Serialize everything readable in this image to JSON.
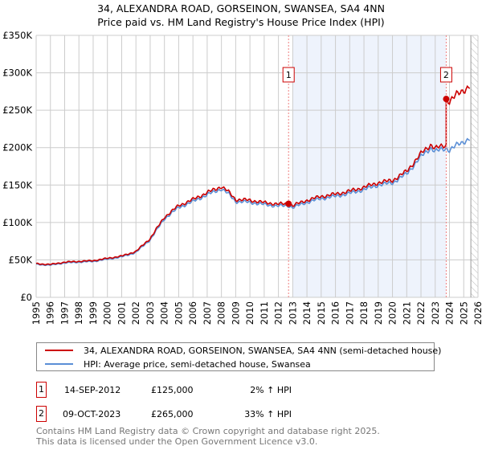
{
  "chart_data": {
    "type": "line",
    "title": "34, ALEXANDRA ROAD, GORSEINON, SWANSEA, SA4 4NN",
    "subtitle": "Price paid vs. HM Land Registry's House Price Index (HPI)",
    "xlim": [
      1995,
      2026
    ],
    "ylim": [
      0,
      350000
    ],
    "x_ticks": [
      "1995",
      "1996",
      "1997",
      "1998",
      "1999",
      "2000",
      "2001",
      "2002",
      "2003",
      "2004",
      "2005",
      "2006",
      "2007",
      "2008",
      "2009",
      "2010",
      "2011",
      "2012",
      "2013",
      "2014",
      "2015",
      "2016",
      "2017",
      "2018",
      "2019",
      "2020",
      "2021",
      "2022",
      "2023",
      "2024",
      "2025",
      "2026"
    ],
    "y_ticks": [
      {
        "v": 0,
        "label": "£0"
      },
      {
        "v": 50000,
        "label": "£50K"
      },
      {
        "v": 100000,
        "label": "£100K"
      },
      {
        "v": 150000,
        "label": "£150K"
      },
      {
        "v": 200000,
        "label": "£200K"
      },
      {
        "v": 250000,
        "label": "£250K"
      },
      {
        "v": 300000,
        "label": "£300K"
      },
      {
        "v": 350000,
        "label": "£350K"
      }
    ],
    "grid": true,
    "series": [
      {
        "name": "34, ALEXANDRA ROAD, GORSEINON, SWANSEA, SA4 4NN (semi-detached house)",
        "color": "#cc0000"
      },
      {
        "name": "HPI: Average price, semi-detached house, Swansea",
        "color": "#5b8fd6",
        "x": [
          1995,
          1996,
          1997,
          1998,
          1999,
          2000,
          2001,
          2002,
          2003,
          2004,
          2005,
          2006,
          2007,
          2008,
          2008.5,
          2009,
          2010,
          2011,
          2012,
          2012.7,
          2013,
          2014,
          2015,
          2016,
          2017,
          2018,
          2019,
          2020,
          2021,
          2022,
          2022.7,
          2023,
          2023.77,
          2024,
          2024.5,
          2025,
          2025.4
        ],
        "values": [
          44000,
          43000,
          46000,
          47000,
          48000,
          51000,
          54000,
          60000,
          77000,
          105000,
          120000,
          128000,
          137000,
          145000,
          138000,
          128000,
          127000,
          124000,
          122000,
          122500,
          120000,
          127000,
          132000,
          135000,
          139000,
          144000,
          150000,
          153000,
          165000,
          188000,
          200000,
          195000,
          199000,
          197000,
          203000,
          208000,
          212000
        ]
      }
    ],
    "sales": [
      {
        "id": "1",
        "x": 2012.71,
        "value": 125000
      },
      {
        "id": "2",
        "x": 2023.77,
        "value": 265000
      }
    ],
    "legend_position": "below"
  },
  "legend": [
    "34, ALEXANDRA ROAD, GORSEINON, SWANSEA, SA4 4NN (semi-detached house)",
    "HPI: Average price, semi-detached house, Swansea"
  ],
  "table": [
    {
      "id": "1",
      "date": "14-SEP-2012",
      "price": "£125,000",
      "hpi": "2% ↑ HPI"
    },
    {
      "id": "2",
      "date": "09-OCT-2023",
      "price": "£265,000",
      "hpi": "33% ↑ HPI"
    }
  ],
  "footer": [
    "Contains HM Land Registry data © Crown copyright and database right 2025.",
    "This data is licensed under the Open Government Licence v3.0."
  ]
}
